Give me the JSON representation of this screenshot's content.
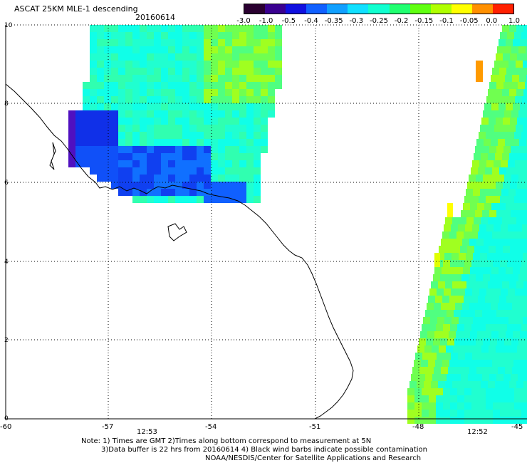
{
  "header": {
    "title": "ASCAT 25KM MLE-1 descending",
    "date": "20160614"
  },
  "colorbar": {
    "labels": [
      "-3.0",
      "-1.0",
      "-0.5",
      "-0.4",
      "-0.35",
      "-0.3",
      "-0.25",
      "-0.2",
      "-0.15",
      "-0.1",
      "-0.05",
      "0.0",
      "1.0"
    ],
    "colors": [
      "#2a0030",
      "#3a0090",
      "#1010e0",
      "#1060ff",
      "#10a0ff",
      "#10e0ff",
      "#10ffd0",
      "#20ff70",
      "#60ff10",
      "#b0ff00",
      "#ffff00",
      "#ff9000",
      "#ff2000"
    ]
  },
  "axes": {
    "y_labels": [
      "10",
      "8",
      "6",
      "4",
      "2",
      "0"
    ],
    "x_labels": [
      "-60",
      "-57",
      "-54",
      "-51",
      "-48",
      "-45"
    ]
  },
  "pass_times": [
    "12:53",
    "12:52"
  ],
  "notes": [
    "Note: 1) Times are GMT 2)Times along bottom correspond to measurement at 5N",
    "3)Data buffer is 22 hrs from 20160614 4) Black wind barbs indicate possible contamination",
    "NOAA/NESDIS/Center for Satellite Applications and Research"
  ]
}
